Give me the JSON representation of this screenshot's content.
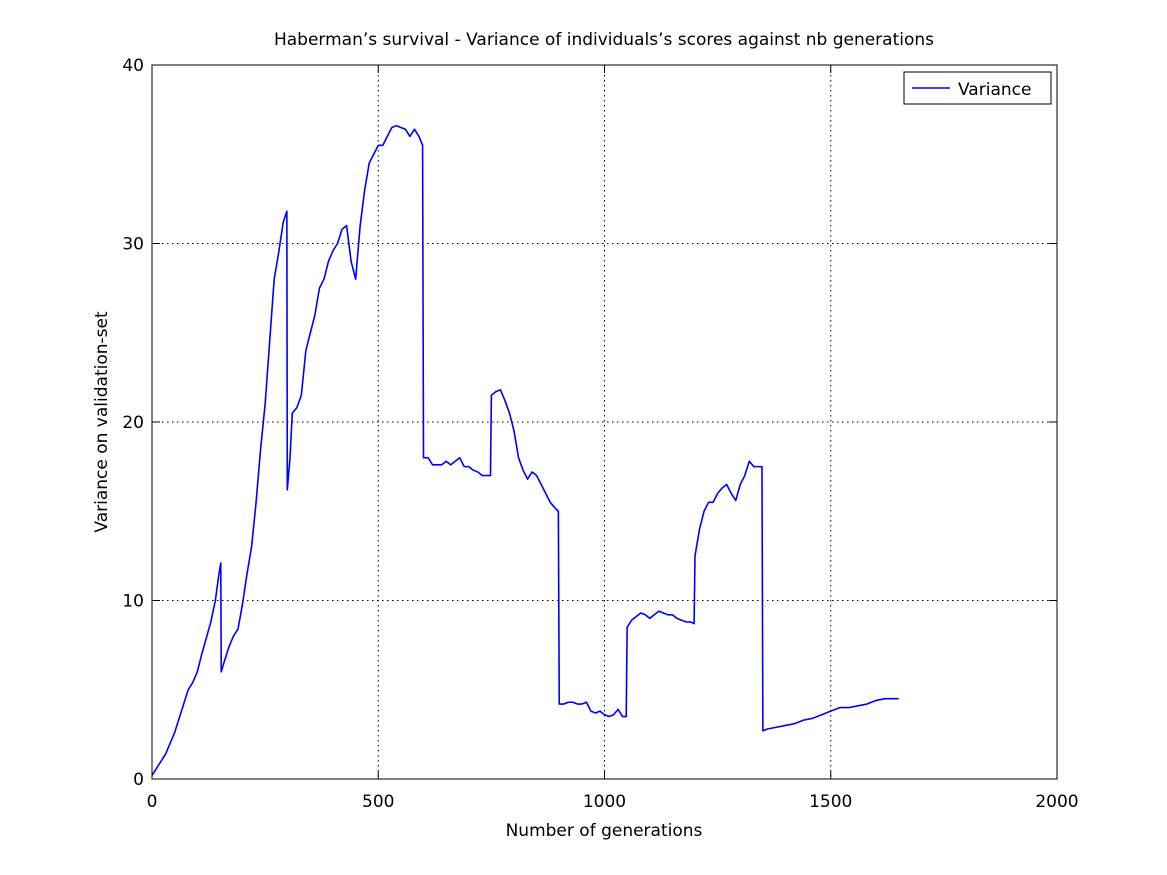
{
  "chart_data": {
    "type": "line",
    "title": "Haberman’s survival - Variance of individuals’s scores against nb generations",
    "xlabel": "Number of generations",
    "ylabel": "Variance on validation-set",
    "xlim": [
      0,
      2000
    ],
    "ylim": [
      0,
      40
    ],
    "xticks": [
      0,
      500,
      1000,
      1500,
      2000
    ],
    "yticks": [
      0,
      10,
      20,
      30,
      40
    ],
    "grid": true,
    "legend_position": "top-right",
    "series": [
      {
        "name": "Variance",
        "color": "#0000ff",
        "points": [
          [
            0,
            0.2
          ],
          [
            10,
            0.6
          ],
          [
            20,
            1.0
          ],
          [
            30,
            1.4
          ],
          [
            40,
            2.0
          ],
          [
            50,
            2.6
          ],
          [
            60,
            3.4
          ],
          [
            70,
            4.2
          ],
          [
            80,
            5.0
          ],
          [
            90,
            5.4
          ],
          [
            100,
            6.0
          ],
          [
            110,
            7.0
          ],
          [
            120,
            7.9
          ],
          [
            130,
            8.8
          ],
          [
            140,
            10.0
          ],
          [
            148,
            11.5
          ],
          [
            152,
            12.1
          ],
          [
            153,
            6.0
          ],
          [
            160,
            6.6
          ],
          [
            170,
            7.4
          ],
          [
            180,
            8.0
          ],
          [
            190,
            8.4
          ],
          [
            200,
            9.8
          ],
          [
            210,
            11.5
          ],
          [
            220,
            13.0
          ],
          [
            230,
            15.5
          ],
          [
            240,
            18.5
          ],
          [
            250,
            21.0
          ],
          [
            260,
            24.5
          ],
          [
            270,
            28.0
          ],
          [
            280,
            29.5
          ],
          [
            290,
            31.2
          ],
          [
            298,
            31.8
          ],
          [
            299,
            16.2
          ],
          [
            305,
            18.0
          ],
          [
            310,
            20.5
          ],
          [
            320,
            20.8
          ],
          [
            330,
            21.5
          ],
          [
            340,
            24.0
          ],
          [
            350,
            25.0
          ],
          [
            360,
            26.0
          ],
          [
            370,
            27.5
          ],
          [
            380,
            28.0
          ],
          [
            390,
            29.0
          ],
          [
            400,
            29.6
          ],
          [
            410,
            30.0
          ],
          [
            420,
            30.8
          ],
          [
            430,
            31.0
          ],
          [
            440,
            29.0
          ],
          [
            450,
            28.0
          ],
          [
            460,
            31.0
          ],
          [
            470,
            33.0
          ],
          [
            480,
            34.5
          ],
          [
            490,
            35.0
          ],
          [
            500,
            35.5
          ],
          [
            510,
            35.5
          ],
          [
            520,
            36.0
          ],
          [
            530,
            36.5
          ],
          [
            540,
            36.6
          ],
          [
            550,
            36.5
          ],
          [
            560,
            36.4
          ],
          [
            570,
            36.0
          ],
          [
            580,
            36.4
          ],
          [
            590,
            36.0
          ],
          [
            598,
            35.5
          ],
          [
            600,
            18.0
          ],
          [
            610,
            18.0
          ],
          [
            620,
            17.6
          ],
          [
            630,
            17.6
          ],
          [
            640,
            17.6
          ],
          [
            650,
            17.8
          ],
          [
            660,
            17.6
          ],
          [
            670,
            17.8
          ],
          [
            680,
            18.0
          ],
          [
            690,
            17.5
          ],
          [
            700,
            17.5
          ],
          [
            710,
            17.3
          ],
          [
            720,
            17.2
          ],
          [
            730,
            17.0
          ],
          [
            740,
            17.0
          ],
          [
            748,
            17.0
          ],
          [
            750,
            21.5
          ],
          [
            760,
            21.7
          ],
          [
            770,
            21.8
          ],
          [
            780,
            21.2
          ],
          [
            790,
            20.5
          ],
          [
            800,
            19.5
          ],
          [
            810,
            18.0
          ],
          [
            820,
            17.3
          ],
          [
            830,
            16.8
          ],
          [
            840,
            17.2
          ],
          [
            850,
            17.0
          ],
          [
            860,
            16.5
          ],
          [
            870,
            16.0
          ],
          [
            880,
            15.5
          ],
          [
            890,
            15.2
          ],
          [
            898,
            15.0
          ],
          [
            900,
            4.2
          ],
          [
            910,
            4.2
          ],
          [
            920,
            4.3
          ],
          [
            930,
            4.3
          ],
          [
            940,
            4.2
          ],
          [
            950,
            4.2
          ],
          [
            960,
            4.3
          ],
          [
            970,
            3.8
          ],
          [
            980,
            3.7
          ],
          [
            990,
            3.8
          ],
          [
            1000,
            3.6
          ],
          [
            1010,
            3.5
          ],
          [
            1020,
            3.6
          ],
          [
            1030,
            3.9
          ],
          [
            1040,
            3.5
          ],
          [
            1048,
            3.5
          ],
          [
            1050,
            8.5
          ],
          [
            1060,
            8.9
          ],
          [
            1070,
            9.1
          ],
          [
            1080,
            9.3
          ],
          [
            1090,
            9.2
          ],
          [
            1100,
            9.0
          ],
          [
            1110,
            9.2
          ],
          [
            1120,
            9.4
          ],
          [
            1130,
            9.3
          ],
          [
            1140,
            9.2
          ],
          [
            1150,
            9.2
          ],
          [
            1160,
            9.0
          ],
          [
            1170,
            8.9
          ],
          [
            1180,
            8.8
          ],
          [
            1190,
            8.8
          ],
          [
            1198,
            8.7
          ],
          [
            1200,
            12.5
          ],
          [
            1210,
            14.0
          ],
          [
            1220,
            15.0
          ],
          [
            1230,
            15.5
          ],
          [
            1240,
            15.5
          ],
          [
            1250,
            16.0
          ],
          [
            1260,
            16.3
          ],
          [
            1270,
            16.5
          ],
          [
            1280,
            16.0
          ],
          [
            1290,
            15.6
          ],
          [
            1300,
            16.5
          ],
          [
            1310,
            17.0
          ],
          [
            1320,
            17.8
          ],
          [
            1330,
            17.5
          ],
          [
            1340,
            17.5
          ],
          [
            1348,
            17.5
          ],
          [
            1350,
            2.7
          ],
          [
            1360,
            2.8
          ],
          [
            1380,
            2.9
          ],
          [
            1400,
            3.0
          ],
          [
            1420,
            3.1
          ],
          [
            1440,
            3.3
          ],
          [
            1460,
            3.4
          ],
          [
            1480,
            3.6
          ],
          [
            1500,
            3.8
          ],
          [
            1520,
            4.0
          ],
          [
            1540,
            4.0
          ],
          [
            1560,
            4.1
          ],
          [
            1580,
            4.2
          ],
          [
            1600,
            4.4
          ],
          [
            1620,
            4.5
          ],
          [
            1640,
            4.5
          ],
          [
            1650,
            4.5
          ]
        ]
      }
    ]
  }
}
